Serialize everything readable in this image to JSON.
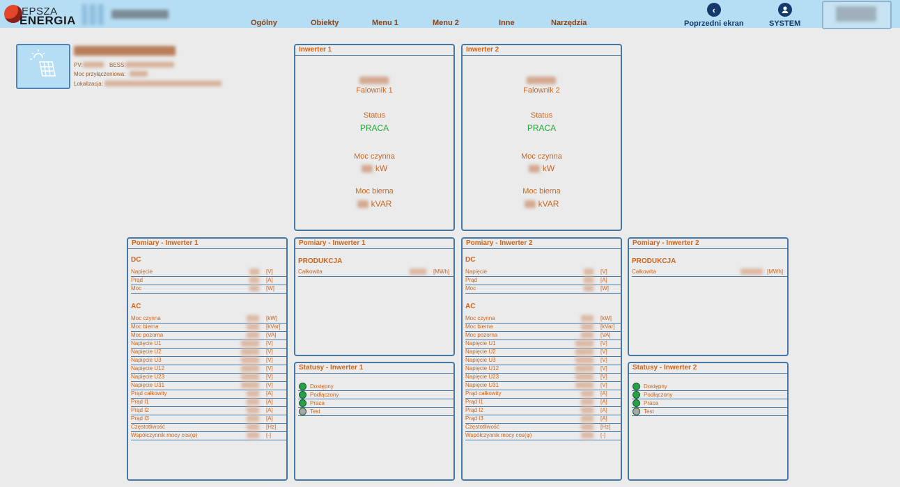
{
  "header": {
    "logo_line1": "EPSZA",
    "logo_line2": "ENERGIA",
    "nav": [
      "Ogólny",
      "Obiekty",
      "Menu 1",
      "Menu 2",
      "Inne",
      "Narzędzia"
    ],
    "back_label": "Poprzedni ekran",
    "system_label": "SYSTEM"
  },
  "site": {
    "pv_label": "PV:",
    "bess_label": "BESS:",
    "connection_label": "Moc przyłączeniowa:",
    "location_label": "Lokalizacja:"
  },
  "inverters": [
    {
      "title": "Inwerter 1",
      "name": "Falownik 1",
      "status_label": "Status",
      "status": "PRACA",
      "active_label": "Moc czynna",
      "active_unit": "kW",
      "reactive_label": "Moc bierna",
      "reactive_unit": "kVAR"
    },
    {
      "title": "Inwerter 2",
      "name": "Falownik 2",
      "status_label": "Status",
      "status": "PRACA",
      "active_label": "Moc czynna",
      "active_unit": "kW",
      "reactive_label": "Moc bierna",
      "reactive_unit": "kVAR"
    }
  ],
  "measurements": {
    "titles": [
      "Pomiary - Inwerter 1",
      "Pomiary - Inwerter 2"
    ],
    "dc_title": "DC",
    "ac_title": "AC",
    "dc_rows": [
      {
        "label": "Napięcie",
        "unit": "[V]"
      },
      {
        "label": "Prąd",
        "unit": "[A]"
      },
      {
        "label": "Moc",
        "unit": "[W]"
      }
    ],
    "ac_rows": [
      {
        "label": "Moc czynna",
        "unit": "[kW]"
      },
      {
        "label": "Moc bierna",
        "unit": "[kVar]"
      },
      {
        "label": "Moc pozorna",
        "unit": "[VA]"
      },
      {
        "label": "Napięcie U1",
        "unit": "[V]"
      },
      {
        "label": "Napięcie U2",
        "unit": "[V]"
      },
      {
        "label": "Napięcie U3",
        "unit": "[V]"
      },
      {
        "label": "Napięcie U12",
        "unit": "[V]"
      },
      {
        "label": "Napięcie U23",
        "unit": "[V]"
      },
      {
        "label": "Napięcie U31",
        "unit": "[V]"
      },
      {
        "label": "Prąd całkowity",
        "unit": "[A]"
      },
      {
        "label": "Prąd I1",
        "unit": "[A]"
      },
      {
        "label": "Prąd I2",
        "unit": "[A]"
      },
      {
        "label": "Prąd I3",
        "unit": "[A]"
      },
      {
        "label": "Częstotliwość",
        "unit": "[Hz]"
      },
      {
        "label": "Współczynnik mocy cos(φ)",
        "unit": "[-]"
      }
    ]
  },
  "production": {
    "titles": [
      "Pomiary - Inwerter 1",
      "Pomiary - Inwerter 2"
    ],
    "section": "PRODUKCJA",
    "row_label": "Całkowita",
    "row_unit": "[MWh]"
  },
  "statuses": {
    "titles": [
      "Statusy - Inwerter 1",
      "Statusy - Inwerter 2"
    ],
    "items": [
      {
        "label": "Dostępny",
        "color": "#27a047"
      },
      {
        "label": "Podłączony",
        "color": "#27a047"
      },
      {
        "label": "Praca",
        "color": "#27a047"
      },
      {
        "label": "Test",
        "color": "#a8a8a8"
      }
    ]
  },
  "colors": {
    "accent_text": "#c9651d",
    "panel_border": "#4577a4",
    "topbar": "#b5ddf3",
    "ok_green": "#25a93b"
  }
}
